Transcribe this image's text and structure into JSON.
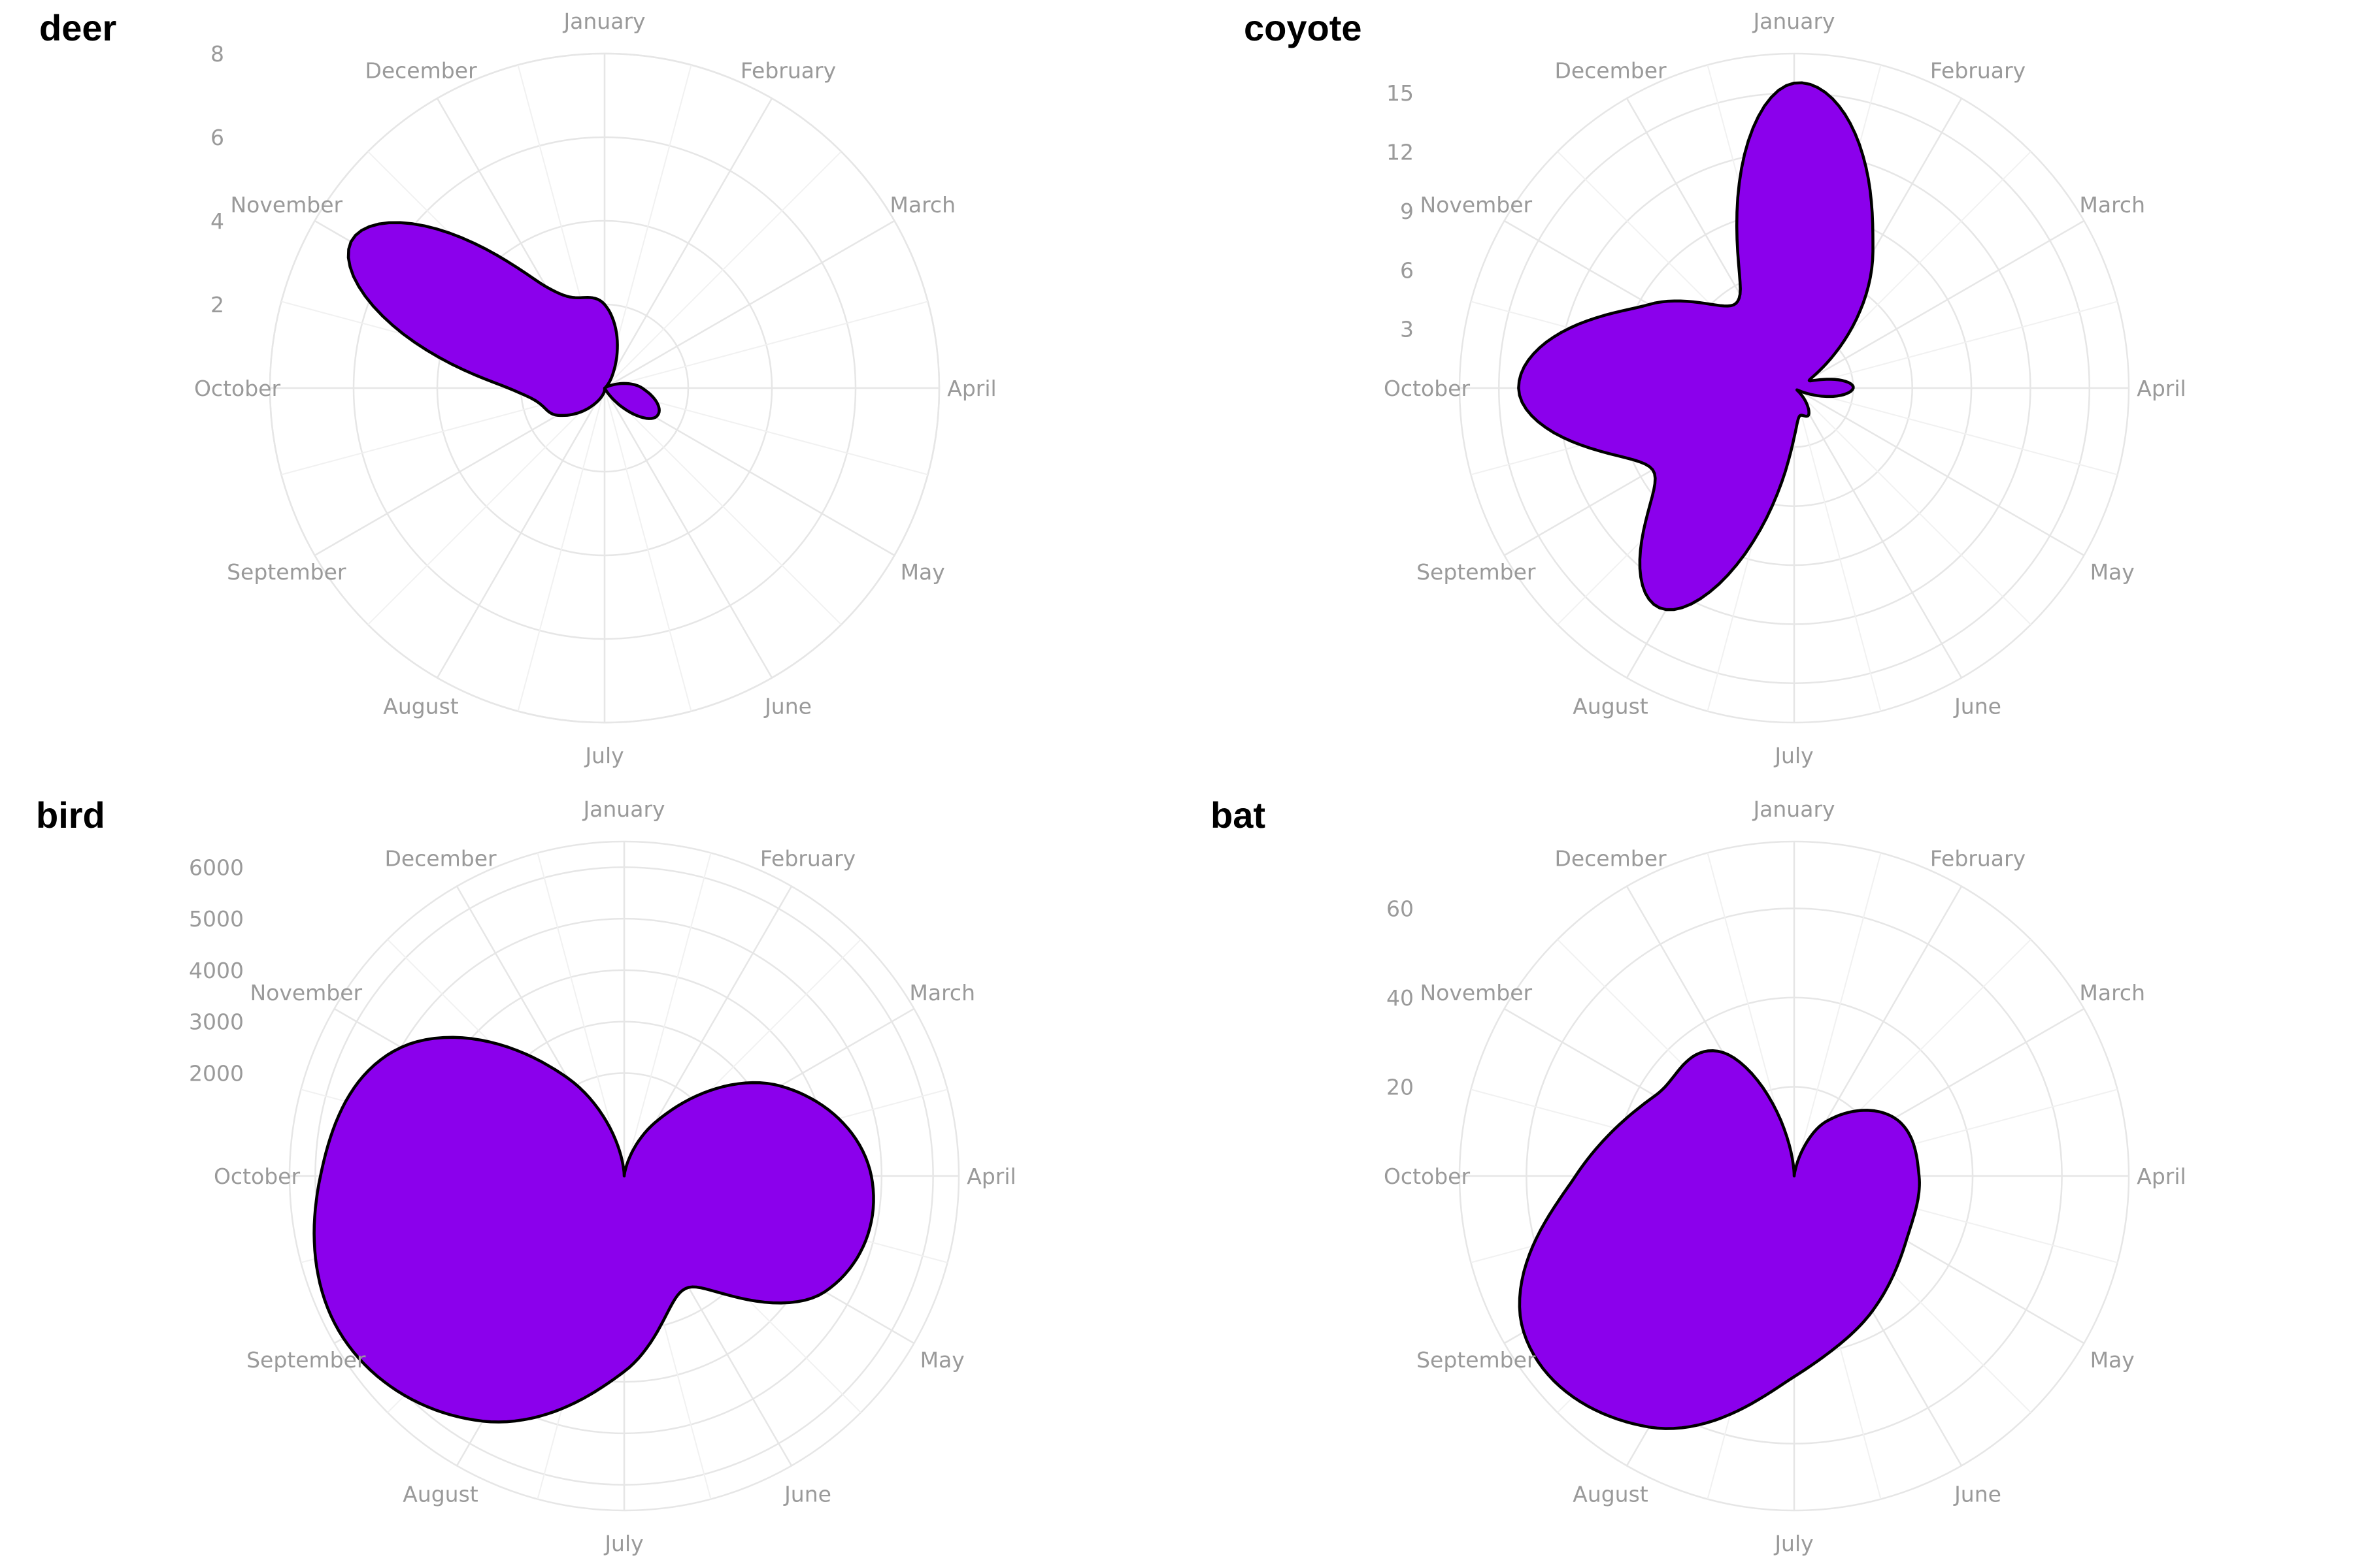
{
  "theme": {
    "fill_color": "#8b00ec",
    "outline_color": "#000000",
    "grid_color": "#e6e6e6",
    "label_color": "#9a9a9a"
  },
  "months": [
    "January",
    "February",
    "March",
    "April",
    "May",
    "June",
    "July",
    "August",
    "September",
    "October",
    "November",
    "December"
  ],
  "chart_data": [
    {
      "type": "area",
      "coord": "polar",
      "title": "deer",
      "x": [
        "January",
        "February",
        "March",
        "April",
        "May",
        "June",
        "July",
        "August",
        "September",
        "October",
        "November",
        "December"
      ],
      "values": [
        2.0,
        0.4,
        0.05,
        0.9,
        1.4,
        0.05,
        0.05,
        0.4,
        1.3,
        2.3,
        7.0,
        2.8
      ],
      "rlim": [
        0,
        8
      ],
      "rticks": [
        2,
        4,
        6,
        8
      ],
      "rtick_labels": [
        "2",
        "4",
        "6",
        "8"
      ]
    },
    {
      "type": "area",
      "coord": "polar",
      "title": "coyote",
      "x": [
        "January",
        "February",
        "March",
        "April",
        "May",
        "June",
        "July",
        "August",
        "September",
        "October",
        "November",
        "December"
      ],
      "values": [
        15.5,
        8.0,
        1.0,
        3.0,
        0.2,
        1.5,
        2.5,
        13.0,
        8.3,
        14.0,
        8.5,
        5.5
      ],
      "rlim": [
        0,
        17
      ],
      "rticks": [
        3,
        6,
        9,
        12,
        15
      ],
      "rtick_labels": [
        "3",
        "6",
        "9",
        "12",
        "15"
      ]
    },
    {
      "type": "area",
      "coord": "polar",
      "title": "bird",
      "x": [
        "January",
        "February",
        "March",
        "April",
        "May",
        "June",
        "July",
        "August",
        "September",
        "October",
        "November",
        "December"
      ],
      "values": [
        0.0,
        1200,
        3500,
        4800,
        4500,
        2500,
        3800,
        5500,
        6300,
        5900,
        5000,
        2200
      ],
      "rlim": [
        0,
        6500
      ],
      "rticks": [
        2000,
        3000,
        4000,
        5000,
        6000
      ],
      "rtick_labels": [
        "2000",
        "3000",
        "4000",
        "5000",
        "6000"
      ]
    },
    {
      "type": "area",
      "coord": "polar",
      "title": "bat",
      "x": [
        "January",
        "February",
        "March",
        "April",
        "May",
        "June",
        "July",
        "August",
        "September",
        "October",
        "November",
        "December"
      ],
      "values": [
        0.0,
        14.0,
        26.0,
        28.0,
        29.0,
        35.0,
        45.0,
        65.0,
        70.0,
        49.0,
        36.0,
        32.0
      ],
      "rlim": [
        0,
        75
      ],
      "rticks": [
        20,
        40,
        60
      ],
      "rtick_labels": [
        "20",
        "40",
        "60"
      ]
    }
  ]
}
